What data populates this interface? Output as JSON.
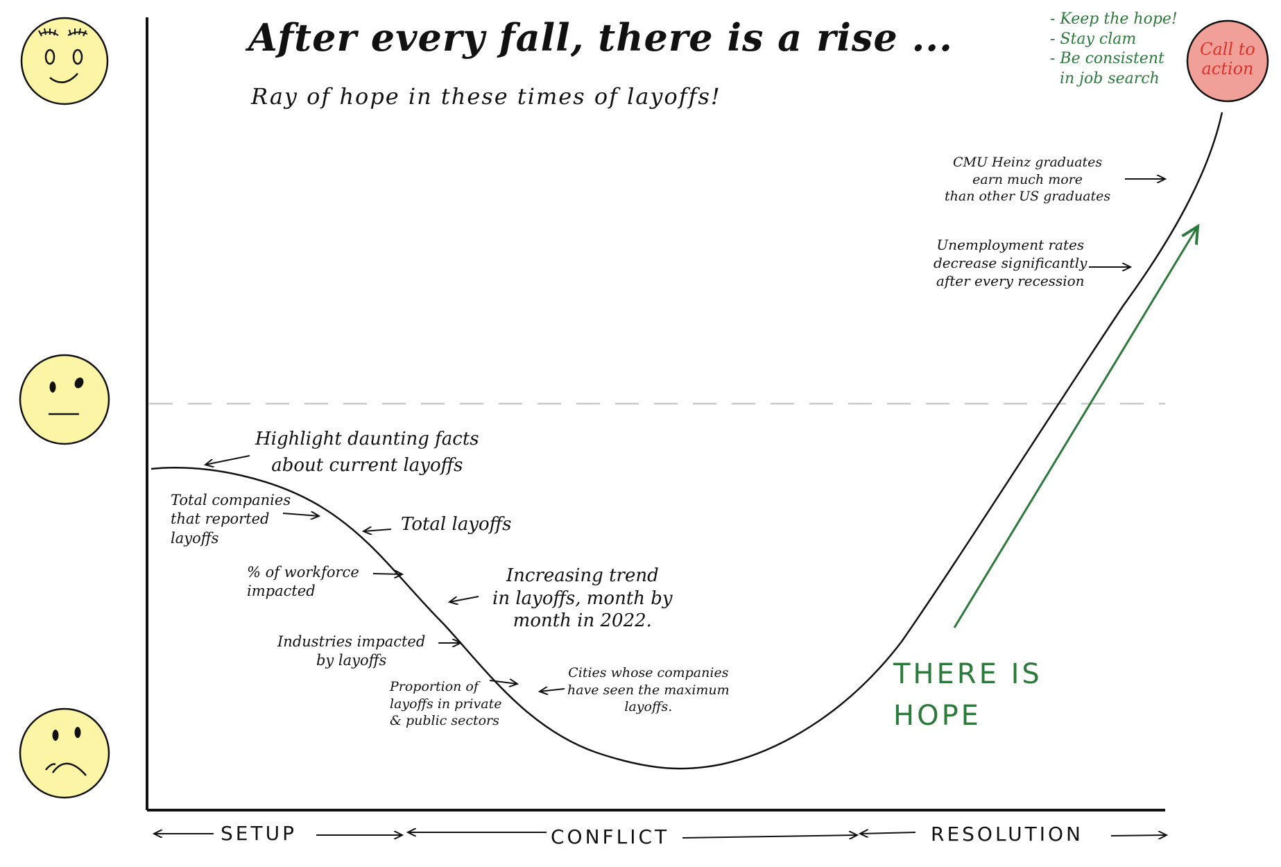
{
  "title": "After every fall, there is a rise ...",
  "subtitle": "Ray of hope in these times of layoffs!",
  "faces": [
    {
      "name": "happy-face-icon",
      "mood": "happy"
    },
    {
      "name": "neutral-face-icon",
      "mood": "neutral"
    },
    {
      "name": "sad-face-icon",
      "mood": "sad"
    }
  ],
  "face_color": "#fbf5a5",
  "cta": {
    "label": "Call to\naction",
    "color": "#f0a098",
    "items": "- Keep the hope!\n- Stay clam\n- Be consistent\n  in job search"
  },
  "annotations": {
    "highlight": "Highlight daunting facts\nabout current layoffs",
    "total_companies": "Total companies\nthat reported\nlayoffs",
    "total_layoffs": "Total layoffs",
    "workforce": "% of workforce\nimpacted",
    "trend": "Increasing trend\nin layoffs, month by\nmonth in 2022.",
    "industries": "Industries impacted\nby layoffs",
    "proportion": "Proportion of\nlayoffs in private\n& public sectors",
    "cities": "Cities whose companies\nhave seen the maximum\nlayoffs.",
    "unemployment": "Unemployment rates\ndecrease significantly\nafter every recession",
    "cmu": "CMU Heinz graduates\nearn much more\nthan other US graduates"
  },
  "hope_text": "THERE IS\nHOPE",
  "phases": {
    "setup": "SETUP",
    "conflict": "CONFLICT",
    "resolution": "RESOLUTION"
  },
  "colors": {
    "green": "#2b7a3b",
    "red_text": "#d9322b",
    "ink": "#111111",
    "dash": "#c8c8c8"
  }
}
